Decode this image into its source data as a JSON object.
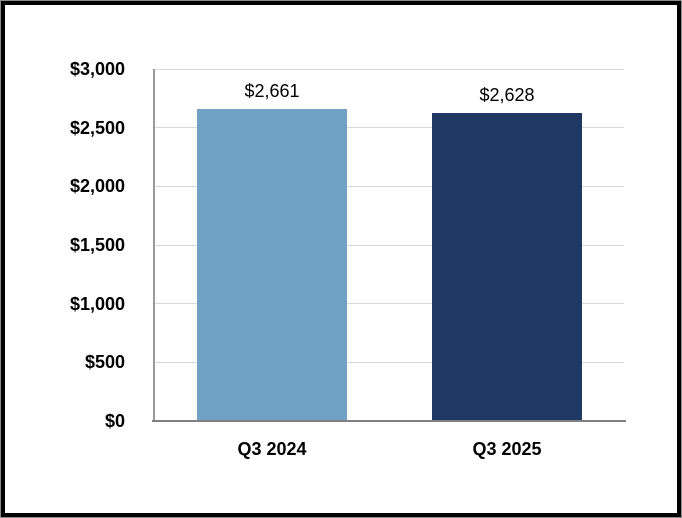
{
  "chart_data": {
    "type": "bar",
    "title": "",
    "xlabel": "",
    "ylabel": "",
    "categories": [
      "Q3 2024",
      "Q3 2025"
    ],
    "values": [
      2661,
      2628
    ],
    "value_labels": [
      "$2,661",
      "$2,628"
    ],
    "series_colors": [
      "#70A1C4",
      "#1F3864"
    ],
    "ylim": [
      0,
      3000
    ],
    "ytick_step": 500,
    "ytick_labels": [
      "$0",
      "$500",
      "$1,000",
      "$1,500",
      "$2,000",
      "$2,500",
      "$3,000"
    ],
    "grid": true,
    "legend": false
  },
  "colors": {
    "background": "#FFFFFF",
    "frame_border": "#000000",
    "frame_outer_line": "#8C8C8C",
    "gridline": "#D9D9D9",
    "x_axis_line": "#808080",
    "y_axis_line": "#9B9B9B",
    "label_text": "#000000"
  }
}
